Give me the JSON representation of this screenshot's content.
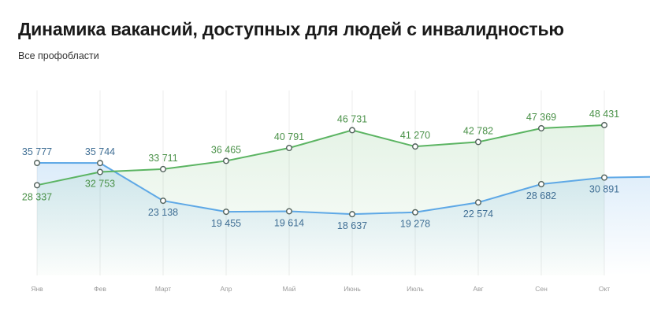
{
  "header": {
    "title": "Динамика вакансий, доступных для людей с инвалидностью",
    "subtitle": "Все профобласти"
  },
  "colors": {
    "green_series": "#5bb462",
    "blue_series": "#5ea8e6",
    "green_label": "#4a9148",
    "blue_label": "#3f6e94",
    "grid": "#ececec",
    "tick": "#9a9a9a"
  },
  "chart_data": {
    "type": "line",
    "title": "Динамика вакансий, доступных для людей с инвалидностью",
    "subtitle": "Все профобласти",
    "categories": [
      "Янв",
      "Фев",
      "Март",
      "Апр",
      "Май",
      "Июнь",
      "Июль",
      "Авг",
      "Сен",
      "Окт"
    ],
    "ylim": [
      0,
      60000
    ],
    "grid": "vertical",
    "series": [
      {
        "color": "#5bb462",
        "values": [
          28337,
          32753,
          33711,
          36465,
          40791,
          46731,
          41270,
          42782,
          47369,
          48431
        ],
        "labels": [
          "28 337",
          "32 753",
          "33 711",
          "36 465",
          "40 791",
          "46 731",
          "41 270",
          "42 782",
          "47 369",
          "48 431"
        ]
      },
      {
        "color": "#5ea8e6",
        "values": [
          35777,
          35744,
          23138,
          19455,
          19614,
          18637,
          19278,
          22574,
          28682,
          30891
        ],
        "labels": [
          "35 777",
          "35 744",
          "23 138",
          "19 455",
          "19 614",
          "18 637",
          "19 278",
          "22 574",
          "28 682",
          "30 891"
        ]
      }
    ]
  }
}
